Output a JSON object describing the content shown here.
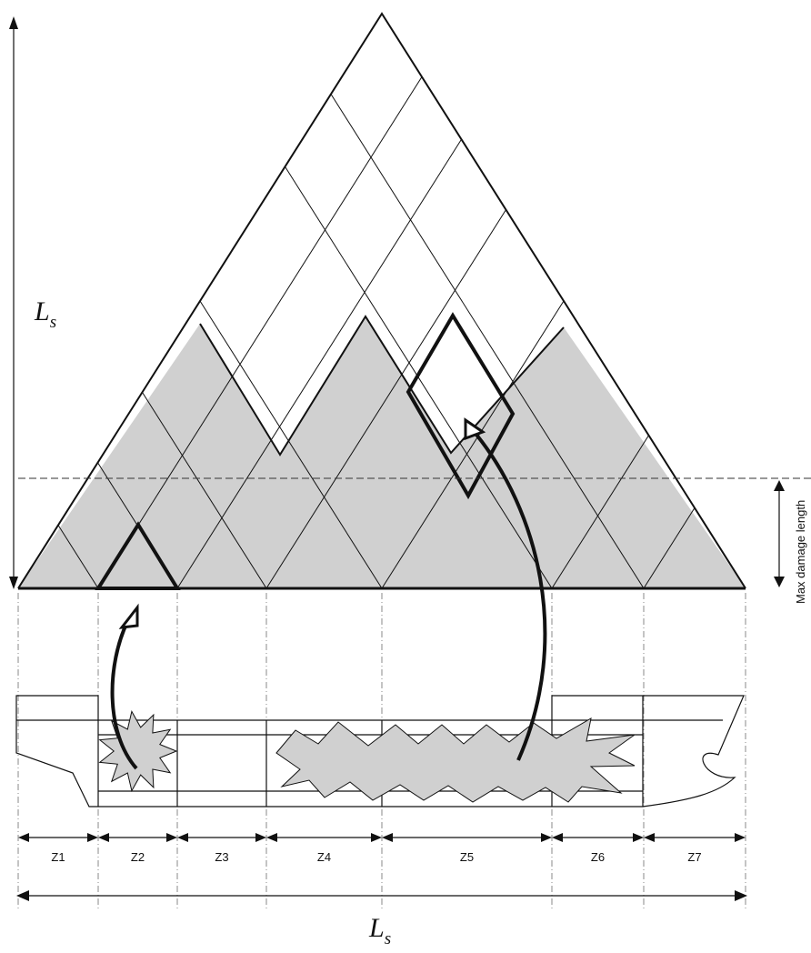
{
  "length_label": {
    "main": "L",
    "subscript": "s"
  },
  "vertical_axis_label": {
    "main": "L",
    "subscript": "s"
  },
  "max_damage_label": "Max damage length",
  "zones": [
    {
      "id": "Z1",
      "label": "Z1"
    },
    {
      "id": "Z2",
      "label": "Z2"
    },
    {
      "id": "Z3",
      "label": "Z3"
    },
    {
      "id": "Z4",
      "label": "Z4"
    },
    {
      "id": "Z5",
      "label": "Z5"
    },
    {
      "id": "Z6",
      "label": "Z6"
    },
    {
      "id": "Z7",
      "label": "Z7"
    }
  ],
  "colors": {
    "shade": "#d0d0d0",
    "line": "#111111"
  }
}
